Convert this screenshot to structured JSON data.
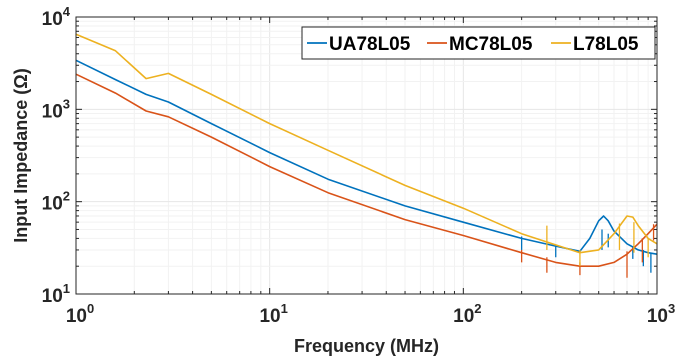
{
  "chart_data": {
    "type": "line",
    "xlabel": "Frequency (MHz)",
    "ylabel": "Input Impedance (Ω)",
    "xscale": "log",
    "yscale": "log",
    "xlim": [
      1,
      1000
    ],
    "ylim": [
      10,
      10000
    ],
    "grid": true,
    "legend_position": "top-right",
    "x_ticks": [
      {
        "value": 1,
        "base": "10",
        "exp": "0"
      },
      {
        "value": 10,
        "base": "10",
        "exp": "1"
      },
      {
        "value": 100,
        "base": "10",
        "exp": "2"
      },
      {
        "value": 1000,
        "base": "10",
        "exp": "3"
      }
    ],
    "y_ticks": [
      {
        "value": 10,
        "base": "10",
        "exp": "1"
      },
      {
        "value": 100,
        "base": "10",
        "exp": "2"
      },
      {
        "value": 1000,
        "base": "10",
        "exp": "3"
      },
      {
        "value": 10000,
        "base": "10",
        "exp": "4"
      }
    ],
    "series": [
      {
        "name": "UA78L05",
        "color": "#0072BD",
        "points": [
          [
            1,
            3400
          ],
          [
            1.6,
            2100
          ],
          [
            2.3,
            1450
          ],
          [
            3,
            1200
          ],
          [
            5,
            700
          ],
          [
            10,
            340
          ],
          [
            20,
            175
          ],
          [
            50,
            90
          ],
          [
            100,
            60
          ],
          [
            200,
            40
          ],
          [
            300,
            33
          ],
          [
            400,
            29
          ],
          [
            450,
            40
          ],
          [
            500,
            62
          ],
          [
            530,
            70
          ],
          [
            560,
            62
          ],
          [
            600,
            48
          ],
          [
            700,
            35
          ],
          [
            800,
            30
          ],
          [
            900,
            28
          ],
          [
            1000,
            27
          ]
        ],
        "spikes": [
          [
            200,
            42,
            30
          ],
          [
            300,
            34,
            25
          ],
          [
            520,
            50,
            30
          ],
          [
            560,
            45,
            32
          ],
          [
            750,
            33,
            24
          ],
          [
            850,
            30,
            20
          ],
          [
            930,
            28,
            17
          ]
        ]
      },
      {
        "name": "MC78L05",
        "color": "#D95319",
        "points": [
          [
            1,
            2400
          ],
          [
            1.6,
            1500
          ],
          [
            2.3,
            960
          ],
          [
            3,
            830
          ],
          [
            5,
            500
          ],
          [
            10,
            240
          ],
          [
            20,
            125
          ],
          [
            50,
            64
          ],
          [
            100,
            43
          ],
          [
            200,
            28
          ],
          [
            300,
            22
          ],
          [
            400,
            20
          ],
          [
            500,
            20
          ],
          [
            600,
            22
          ],
          [
            700,
            27
          ],
          [
            800,
            35
          ],
          [
            900,
            45
          ],
          [
            1000,
            57
          ]
        ],
        "spikes": [
          [
            200,
            30,
            22
          ],
          [
            270,
            25,
            17
          ],
          [
            400,
            22,
            16
          ],
          [
            700,
            29,
            15
          ],
          [
            840,
            40,
            22
          ],
          [
            960,
            57,
            38
          ]
        ]
      },
      {
        "name": "L78L05",
        "color": "#EDB120",
        "points": [
          [
            1,
            6500
          ],
          [
            1.6,
            4300
          ],
          [
            2.3,
            2150
          ],
          [
            3,
            2450
          ],
          [
            5,
            1450
          ],
          [
            10,
            700
          ],
          [
            20,
            360
          ],
          [
            50,
            150
          ],
          [
            100,
            85
          ],
          [
            200,
            45
          ],
          [
            300,
            34
          ],
          [
            400,
            28
          ],
          [
            500,
            30
          ],
          [
            600,
            45
          ],
          [
            700,
            70
          ],
          [
            750,
            68
          ],
          [
            800,
            55
          ],
          [
            900,
            40
          ],
          [
            1000,
            35
          ]
        ],
        "spikes": [
          [
            270,
            55,
            30
          ],
          [
            400,
            30,
            20
          ],
          [
            640,
            58,
            30
          ],
          [
            760,
            60,
            28
          ],
          [
            900,
            40,
            25
          ]
        ]
      }
    ]
  }
}
